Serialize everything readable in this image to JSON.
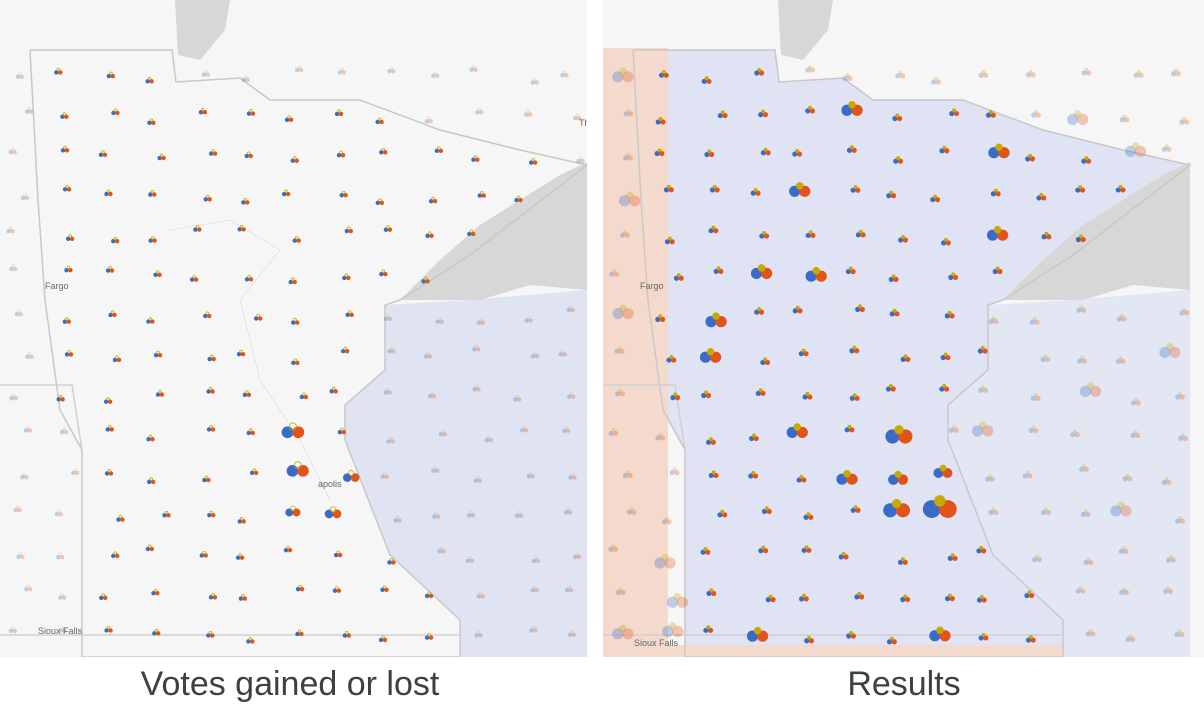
{
  "panels": [
    {
      "caption": "Votes gained or lost",
      "labels": {
        "fargo": "Fargo",
        "sioux_falls": "Sioux Falls",
        "city": "apolis",
        "edge": "Th"
      }
    },
    {
      "caption": "Results",
      "labels": {
        "fargo": "Fargo",
        "sioux_falls": "Sioux Falls"
      }
    }
  ]
}
